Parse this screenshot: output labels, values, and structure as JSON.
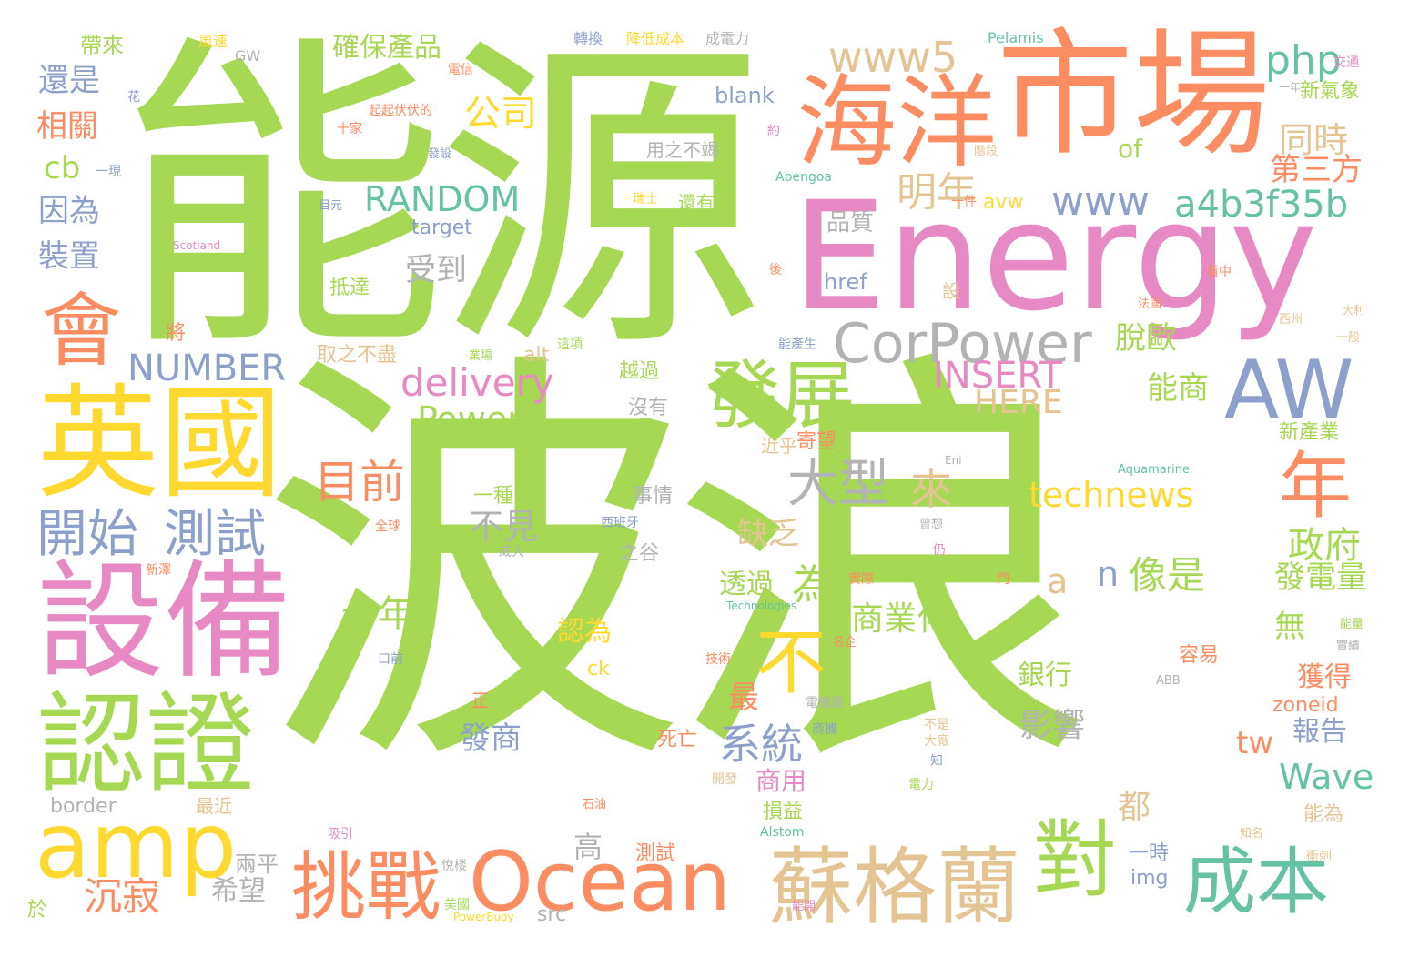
{
  "palette": {
    "green": "#a6d854",
    "orange": "#fc8d62",
    "pink": "#e78ac3",
    "blue": "#8da0cb",
    "yellow": "#ffd92f",
    "tan": "#e5c494",
    "gray": "#b3b3b3",
    "teal": "#66c2a5"
  },
  "words": [
    {
      "text": "波浪",
      "color": "green"
    },
    {
      "text": "能源",
      "color": "green"
    },
    {
      "text": "Energy",
      "color": "pink"
    },
    {
      "text": "市場",
      "color": "orange"
    },
    {
      "text": "海洋",
      "color": "orange"
    },
    {
      "text": "英國",
      "color": "yellow"
    },
    {
      "text": "設備",
      "color": "pink"
    },
    {
      "text": "認證",
      "color": "green"
    },
    {
      "text": "amp",
      "color": "yellow"
    },
    {
      "text": "Ocean",
      "color": "orange"
    },
    {
      "text": "蘇格蘭",
      "color": "tan"
    },
    {
      "text": "挑戰",
      "color": "orange"
    },
    {
      "text": "對",
      "color": "green"
    },
    {
      "text": "成本",
      "color": "teal"
    },
    {
      "text": "會",
      "color": "orange"
    },
    {
      "text": "發展",
      "color": "green"
    },
    {
      "text": "AW",
      "color": "blue"
    },
    {
      "text": "年",
      "color": "orange"
    },
    {
      "text": "CorPower",
      "color": "gray"
    },
    {
      "text": "不",
      "color": "yellow"
    },
    {
      "text": "開始",
      "color": "blue"
    },
    {
      "text": "測試",
      "color": "blue"
    },
    {
      "text": "www5",
      "color": "tan"
    },
    {
      "text": "php",
      "color": "teal"
    },
    {
      "text": "www",
      "color": "blue"
    },
    {
      "text": "a4b3f35b",
      "color": "teal"
    },
    {
      "text": "RANDOM",
      "color": "teal"
    },
    {
      "text": "明年",
      "color": "tan"
    },
    {
      "text": "同時",
      "color": "tan"
    },
    {
      "text": "第三方",
      "color": "orange"
    },
    {
      "text": "公司",
      "color": "yellow"
    },
    {
      "text": "大型",
      "color": "gray"
    },
    {
      "text": "目前",
      "color": "orange"
    },
    {
      "text": "NUMBER",
      "color": "blue"
    },
    {
      "text": "delivery",
      "color": "pink"
    },
    {
      "text": "INSERT",
      "color": "pink"
    },
    {
      "text": "HERE",
      "color": "tan"
    },
    {
      "text": "Power",
      "color": "green"
    },
    {
      "text": "technews",
      "color": "yellow"
    },
    {
      "text": "Wave",
      "color": "teal"
    },
    {
      "text": "系統",
      "color": "blue"
    },
    {
      "text": "像是",
      "color": "green"
    },
    {
      "text": "政府",
      "color": "green"
    },
    {
      "text": "發電量",
      "color": "green"
    },
    {
      "text": "確保產品",
      "color": "green"
    },
    {
      "text": "還是",
      "color": "blue"
    },
    {
      "text": "相關",
      "color": "orange"
    },
    {
      "text": "cb",
      "color": "green"
    },
    {
      "text": "因為",
      "color": "blue"
    },
    {
      "text": "裝置",
      "color": "blue"
    },
    {
      "text": "帶來",
      "color": "green"
    },
    {
      "text": "十年",
      "color": "green"
    },
    {
      "text": "沉寂",
      "color": "orange"
    },
    {
      "text": "來",
      "color": "tan"
    },
    {
      "text": "為",
      "color": "green"
    },
    {
      "text": "受到",
      "color": "gray"
    },
    {
      "text": "品質",
      "color": "gray"
    },
    {
      "text": "脫歐",
      "color": "green"
    },
    {
      "text": "能商",
      "color": "green"
    },
    {
      "text": "不見",
      "color": "gray"
    },
    {
      "text": "缺乏",
      "color": "tan"
    },
    {
      "text": "透過",
      "color": "green"
    },
    {
      "text": "商業化",
      "color": "green"
    },
    {
      "text": "認為",
      "color": "yellow"
    },
    {
      "text": "無",
      "color": "green"
    },
    {
      "text": "獲得",
      "color": "orange"
    },
    {
      "text": "報告",
      "color": "blue"
    },
    {
      "text": "銀行",
      "color": "green"
    },
    {
      "text": "影響",
      "color": "gray"
    },
    {
      "text": "最",
      "color": "orange"
    },
    {
      "text": "發商",
      "color": "blue"
    },
    {
      "text": "商用",
      "color": "pink"
    },
    {
      "text": "高",
      "color": "gray"
    },
    {
      "text": "希望",
      "color": "gray"
    },
    {
      "text": "兩平",
      "color": "gray"
    },
    {
      "text": "都",
      "color": "tan"
    },
    {
      "text": "tw",
      "color": "orange"
    },
    {
      "text": "a",
      "color": "tan"
    },
    {
      "text": "n",
      "color": "blue"
    },
    {
      "text": "of",
      "color": "green"
    },
    {
      "text": "blank",
      "color": "blue"
    },
    {
      "text": "href",
      "color": "blue"
    },
    {
      "text": "target",
      "color": "blue"
    },
    {
      "text": "zoneid",
      "color": "orange"
    },
    {
      "text": "img",
      "color": "blue"
    },
    {
      "text": "src",
      "color": "gray"
    },
    {
      "text": "border",
      "color": "gray"
    },
    {
      "text": "ck",
      "color": "yellow"
    },
    {
      "text": "alt",
      "color": "tan"
    },
    {
      "text": "avw",
      "color": "yellow"
    },
    {
      "text": "新氣象",
      "color": "green"
    },
    {
      "text": "新產業",
      "color": "green"
    },
    {
      "text": "容易",
      "color": "orange"
    },
    {
      "text": "能為",
      "color": "tan"
    },
    {
      "text": "一時",
      "color": "blue"
    },
    {
      "text": "測試",
      "color": "orange"
    },
    {
      "text": "寄望",
      "color": "orange"
    },
    {
      "text": "近乎",
      "color": "tan"
    },
    {
      "text": "損益",
      "color": "green"
    },
    {
      "text": "越過",
      "color": "green"
    },
    {
      "text": "取之不盡",
      "color": "tan"
    },
    {
      "text": "沒有",
      "color": "gray"
    },
    {
      "text": "事情",
      "color": "gray"
    },
    {
      "text": "之谷",
      "color": "gray"
    },
    {
      "text": "一種",
      "color": "green"
    },
    {
      "text": "抵達",
      "color": "green"
    },
    {
      "text": "死亡",
      "color": "orange"
    },
    {
      "text": "用之不竭",
      "color": "gray"
    },
    {
      "text": "還有",
      "color": "green"
    },
    {
      "text": "將",
      "color": "orange"
    },
    {
      "text": "最近",
      "color": "tan"
    },
    {
      "text": "轉換",
      "color": "blue"
    },
    {
      "text": "降低成本",
      "color": "yellow"
    },
    {
      "text": "成電力",
      "color": "gray"
    },
    {
      "text": "風速",
      "color": "yellow"
    },
    {
      "text": "GW",
      "color": "gray"
    },
    {
      "text": "Pelamis",
      "color": "teal"
    },
    {
      "text": "交通",
      "color": "pink"
    },
    {
      "text": "電信",
      "color": "orange"
    },
    {
      "text": "起起伏伏的",
      "color": "orange"
    },
    {
      "text": "十家",
      "color": "orange"
    },
    {
      "text": "一現",
      "color": "blue"
    },
    {
      "text": "花",
      "color": "blue"
    },
    {
      "text": "一年",
      "color": "gray"
    },
    {
      "text": "發設",
      "color": "blue"
    },
    {
      "text": "Abengoa",
      "color": "teal"
    },
    {
      "text": "一件",
      "color": "orange"
    },
    {
      "text": "瑞士",
      "color": "yellow"
    },
    {
      "text": "目元",
      "color": "blue"
    },
    {
      "text": "Scotland",
      "color": "pink"
    },
    {
      "text": "看中",
      "color": "orange"
    },
    {
      "text": "法國",
      "color": "orange"
    },
    {
      "text": "西州",
      "color": "tan"
    },
    {
      "text": "一般",
      "color": "tan"
    },
    {
      "text": "西班牙",
      "color": "blue"
    },
    {
      "text": "威大",
      "color": "gray"
    },
    {
      "text": "全球",
      "color": "orange"
    },
    {
      "text": "新澤",
      "color": "orange"
    },
    {
      "text": "Aquamarine",
      "color": "teal"
    },
    {
      "text": "Technologies",
      "color": "teal"
    },
    {
      "text": "實際",
      "color": "orange"
    },
    {
      "text": "技術",
      "color": "orange"
    },
    {
      "text": "名企",
      "color": "orange"
    },
    {
      "text": "電機廠",
      "color": "gray"
    },
    {
      "text": "ABB",
      "color": "gray"
    },
    {
      "text": "商機",
      "color": "blue"
    },
    {
      "text": "不是",
      "color": "tan"
    },
    {
      "text": "大廠",
      "color": "tan"
    },
    {
      "text": "知",
      "color": "blue"
    },
    {
      "text": "開發",
      "color": "tan"
    },
    {
      "text": "電力",
      "color": "green"
    },
    {
      "text": "石油",
      "color": "orange"
    },
    {
      "text": "Alstom",
      "color": "teal"
    },
    {
      "text": "知名",
      "color": "tan"
    },
    {
      "text": "吸引",
      "color": "pink"
    },
    {
      "text": "悅楼",
      "color": "gray"
    },
    {
      "text": "美國",
      "color": "green"
    },
    {
      "text": "PowerBuoy",
      "color": "yellow"
    },
    {
      "text": "能開",
      "color": "pink"
    },
    {
      "text": "於",
      "color": "green"
    },
    {
      "text": "衝刺",
      "color": "tan"
    },
    {
      "text": "正",
      "color": "orange"
    },
    {
      "text": "口前",
      "color": "blue"
    },
    {
      "text": "這項",
      "color": "green"
    },
    {
      "text": "能產生",
      "color": "blue"
    },
    {
      "text": "業場",
      "color": "green"
    },
    {
      "text": "階段",
      "color": "tan"
    },
    {
      "text": "設",
      "color": "tan"
    },
    {
      "text": "後",
      "color": "orange"
    },
    {
      "text": "約",
      "color": "pink"
    },
    {
      "text": "仍",
      "color": "pink"
    },
    {
      "text": "能量",
      "color": "green"
    },
    {
      "text": "實績",
      "color": "gray"
    },
    {
      "text": "大利",
      "color": "tan"
    },
    {
      "text": "曾想",
      "color": "gray"
    },
    {
      "text": "門",
      "color": "orange"
    },
    {
      "text": "Eni",
      "color": "gray"
    }
  ]
}
